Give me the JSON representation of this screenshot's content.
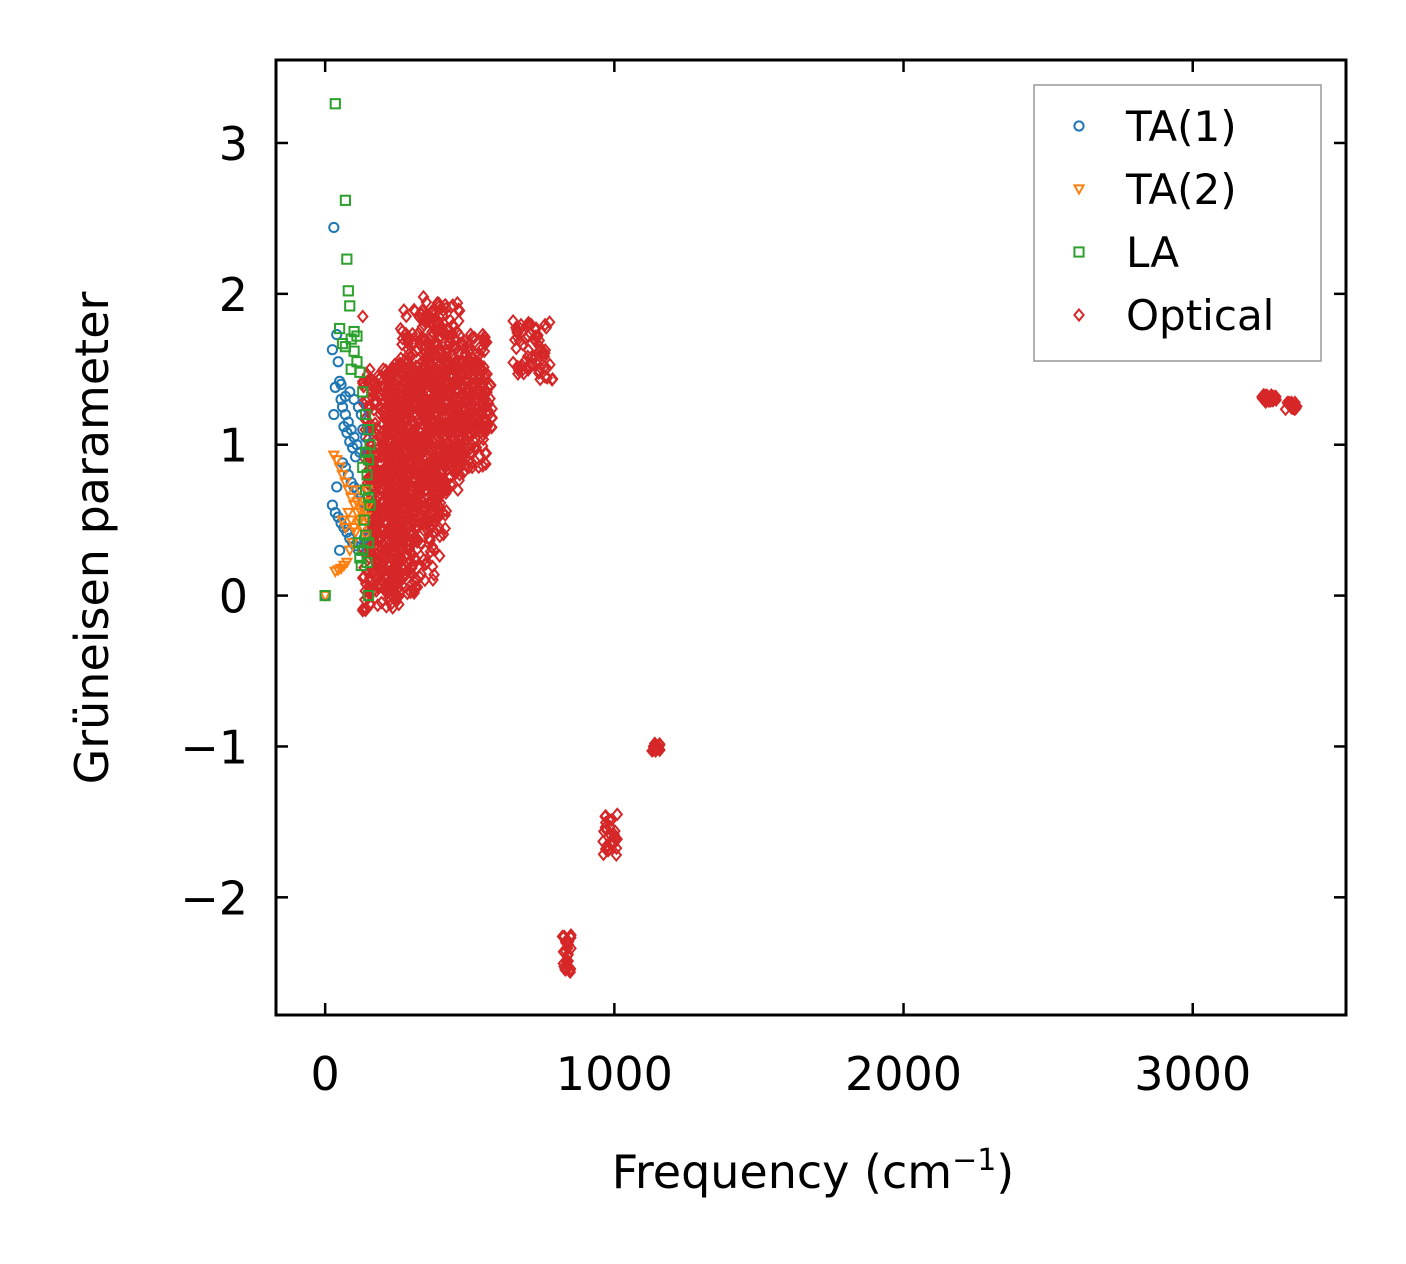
{
  "chart_data": {
    "type": "scatter",
    "title": "",
    "xlabel": "Frequency (cm",
    "xlabel_sup": "−1",
    "xlabel_end": ")",
    "ylabel": "Grüneisen parameter",
    "xlim": [
      -170,
      3530
    ],
    "ylim": [
      -2.78,
      3.55
    ],
    "xticks": [
      0,
      1000,
      2000,
      3000
    ],
    "xtick_labels": [
      "0",
      "1000",
      "2000",
      "3000"
    ],
    "yticks": [
      -2,
      -1,
      0,
      1,
      2,
      3
    ],
    "ytick_labels": [
      "−2",
      "−1",
      "0",
      "1",
      "2",
      "3"
    ],
    "grid": false,
    "legend_position": "top-right",
    "series": [
      {
        "name": "TA(1)",
        "marker": "circle",
        "color": "#1f77b4",
        "points": [
          [
            0,
            0
          ],
          [
            30,
            2.44
          ],
          [
            25,
            1.63
          ],
          [
            40,
            1.73
          ],
          [
            45,
            1.55
          ],
          [
            50,
            1.42
          ],
          [
            35,
            1.38
          ],
          [
            55,
            1.3
          ],
          [
            60,
            1.25
          ],
          [
            70,
            1.2
          ],
          [
            80,
            1.15
          ],
          [
            90,
            1.1
          ],
          [
            100,
            1.05
          ],
          [
            110,
            1.0
          ],
          [
            120,
            0.95
          ],
          [
            65,
            1.12
          ],
          [
            75,
            1.08
          ],
          [
            85,
            1.02
          ],
          [
            95,
            0.98
          ],
          [
            105,
            0.92
          ],
          [
            60,
            0.88
          ],
          [
            70,
            0.85
          ],
          [
            80,
            0.8
          ],
          [
            90,
            0.75
          ],
          [
            100,
            0.72
          ],
          [
            110,
            0.7
          ],
          [
            120,
            0.68
          ],
          [
            130,
            0.62
          ],
          [
            25,
            0.6
          ],
          [
            35,
            0.55
          ],
          [
            45,
            0.52
          ],
          [
            55,
            0.48
          ],
          [
            65,
            0.45
          ],
          [
            75,
            0.42
          ],
          [
            85,
            0.38
          ],
          [
            95,
            0.35
          ],
          [
            105,
            0.33
          ],
          [
            115,
            0.3
          ],
          [
            50,
            0.3
          ],
          [
            135,
            0.38
          ],
          [
            140,
            1.05
          ],
          [
            130,
            1.1
          ],
          [
            125,
            1.2
          ],
          [
            115,
            1.25
          ],
          [
            100,
            1.3
          ],
          [
            85,
            1.35
          ],
          [
            70,
            1.32
          ],
          [
            55,
            1.4
          ],
          [
            30,
            1.2
          ],
          [
            40,
            0.72
          ]
        ]
      },
      {
        "name": "TA(2)",
        "marker": "triangle-down",
        "color": "#ff7f0e",
        "points": [
          [
            0,
            0
          ],
          [
            30,
            0.93
          ],
          [
            40,
            0.9
          ],
          [
            50,
            0.85
          ],
          [
            60,
            0.8
          ],
          [
            70,
            0.75
          ],
          [
            80,
            0.7
          ],
          [
            90,
            0.65
          ],
          [
            100,
            0.6
          ],
          [
            110,
            0.55
          ],
          [
            120,
            0.5
          ],
          [
            130,
            0.45
          ],
          [
            140,
            0.4
          ],
          [
            35,
            0.16
          ],
          [
            45,
            0.17
          ],
          [
            55,
            0.18
          ],
          [
            65,
            0.2
          ],
          [
            75,
            0.22
          ],
          [
            85,
            0.3
          ],
          [
            95,
            0.35
          ],
          [
            105,
            0.42
          ],
          [
            115,
            0.48
          ],
          [
            125,
            0.55
          ],
          [
            135,
            0.62
          ],
          [
            145,
            0.7
          ],
          [
            60,
            0.5
          ],
          [
            70,
            0.45
          ],
          [
            80,
            0.55
          ],
          [
            90,
            0.5
          ],
          [
            100,
            0.45
          ],
          [
            110,
            0.62
          ],
          [
            120,
            0.7
          ],
          [
            130,
            0.58
          ],
          [
            140,
            0.52
          ],
          [
            150,
            0.6
          ]
        ]
      },
      {
        "name": "LA",
        "marker": "square",
        "color": "#2ca02c",
        "points": [
          [
            0,
            0
          ],
          [
            35,
            3.26
          ],
          [
            70,
            2.62
          ],
          [
            75,
            2.23
          ],
          [
            80,
            2.02
          ],
          [
            85,
            1.92
          ],
          [
            50,
            1.77
          ],
          [
            60,
            1.67
          ],
          [
            70,
            1.65
          ],
          [
            90,
            1.7
          ],
          [
            100,
            1.62
          ],
          [
            110,
            1.55
          ],
          [
            120,
            1.48
          ],
          [
            130,
            1.35
          ],
          [
            140,
            1.2
          ],
          [
            150,
            1.1
          ],
          [
            100,
            1.75
          ],
          [
            110,
            1.72
          ],
          [
            90,
            1.5
          ],
          [
            150,
            0.9
          ],
          [
            145,
            0.8
          ],
          [
            140,
            0.7
          ],
          [
            150,
            0.65
          ],
          [
            135,
            0.5
          ],
          [
            140,
            0.4
          ],
          [
            130,
            0.3
          ],
          [
            120,
            0.25
          ],
          [
            145,
            0.22
          ],
          [
            150,
            0.35
          ],
          [
            155,
            0.6
          ],
          [
            150,
            0.0
          ],
          [
            125,
            0.2
          ],
          [
            115,
            0.35
          ],
          [
            130,
            0.85
          ],
          [
            140,
            0.95
          ],
          [
            155,
            1.0
          ]
        ]
      },
      {
        "name": "Optical",
        "marker": "diamond",
        "color": "#d62728",
        "clusters": [
          {
            "x": [
              130,
              260
            ],
            "y": [
              -0.1,
              1.55
            ]
          },
          {
            "x": [
              150,
              320
            ],
            "y": [
              0.0,
              1.5
            ]
          },
          {
            "x": [
              200,
              400
            ],
            "y": [
              0.1,
              1.55
            ]
          },
          {
            "x": [
              260,
              420
            ],
            "y": [
              0.4,
              1.9
            ]
          },
          {
            "x": [
              330,
              470
            ],
            "y": [
              0.7,
              1.95
            ]
          },
          {
            "x": [
              400,
              510
            ],
            "y": [
              0.85,
              1.75
            ]
          },
          {
            "x": [
              430,
              560
            ],
            "y": [
              0.85,
              1.55
            ]
          },
          {
            "x": [
              480,
              560
            ],
            "y": [
              1.05,
              1.72
            ]
          },
          {
            "x": [
              530,
              580
            ],
            "y": [
              1.1,
              1.4
            ]
          },
          {
            "x": [
              650,
              790
            ],
            "y": [
              1.42,
              1.82
            ]
          },
          {
            "x": [
              820,
              850
            ],
            "y": [
              -2.5,
              -2.25
            ]
          },
          {
            "x": [
              960,
              1010
            ],
            "y": [
              -1.72,
              -1.45
            ]
          },
          {
            "x": [
              1130,
              1160
            ],
            "y": [
              -1.03,
              -0.98
            ]
          },
          {
            "x": [
              3240,
              3290
            ],
            "y": [
              1.28,
              1.33
            ]
          },
          {
            "x": [
              3320,
              3360
            ],
            "y": [
              1.23,
              1.28
            ]
          }
        ],
        "points": [
          [
            130,
            1.85
          ],
          [
            340,
            1.98
          ],
          [
            440,
            1.79
          ],
          [
            545,
            1.73
          ],
          [
            650,
            1.82
          ],
          [
            130,
            -0.1
          ],
          [
            210,
            0.05
          ],
          [
            250,
            0.2
          ],
          [
            1150,
            -1.0
          ],
          [
            3250,
            1.32
          ],
          [
            3330,
            1.27
          ],
          [
            3350,
            1.25
          ],
          [
            830,
            -2.48
          ],
          [
            850,
            -2.25
          ],
          [
            970,
            -1.68
          ],
          [
            1010,
            -1.45
          ],
          [
            480,
            0.82
          ],
          [
            360,
            0.62
          ]
        ]
      }
    ]
  }
}
